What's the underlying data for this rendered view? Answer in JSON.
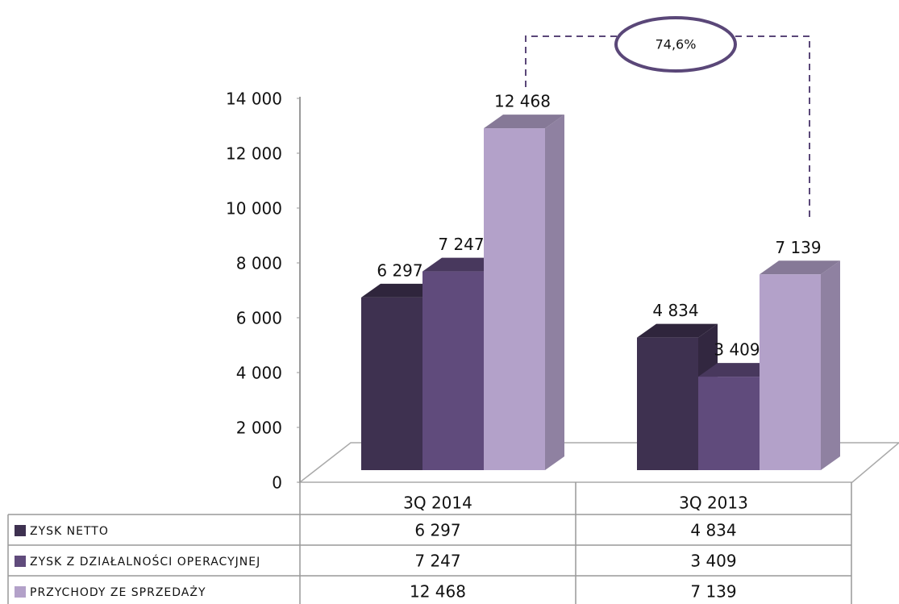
{
  "chart_data": {
    "type": "bar",
    "categories": [
      "3Q 2014",
      "3Q 2013"
    ],
    "series": [
      {
        "name": "ZYSK NETTO",
        "color": "#3e3150",
        "values": [
          6297,
          4834
        ],
        "value_labels": [
          "6 297",
          "4 834"
        ]
      },
      {
        "name": "ZYSK Z DZIAŁALNOŚCI OPERACYJNEJ",
        "color": "#604b7c",
        "values": [
          7247,
          3409
        ],
        "value_labels": [
          "7 247",
          "3 409"
        ]
      },
      {
        "name": "PRZYCHODY ZE SPRZEDAŻY",
        "color": "#b3a1c9",
        "values": [
          12468,
          7139
        ],
        "value_labels": [
          "12 468",
          "7 139"
        ]
      }
    ],
    "ylim": [
      0,
      14000
    ],
    "yticks": [
      0,
      {
        "value": 2000,
        "label": "2 000"
      },
      {
        "value": 4000,
        "label": "4 000"
      },
      {
        "value": 6000,
        "label": "6 000"
      },
      {
        "value": 8000,
        "label": "8 000"
      },
      {
        "value": 10000,
        "label": "10 000"
      },
      {
        "value": 12000,
        "label": "12 000"
      },
      {
        "value": 14000,
        "label": "14 000"
      }
    ],
    "annotation": "74,6%"
  }
}
